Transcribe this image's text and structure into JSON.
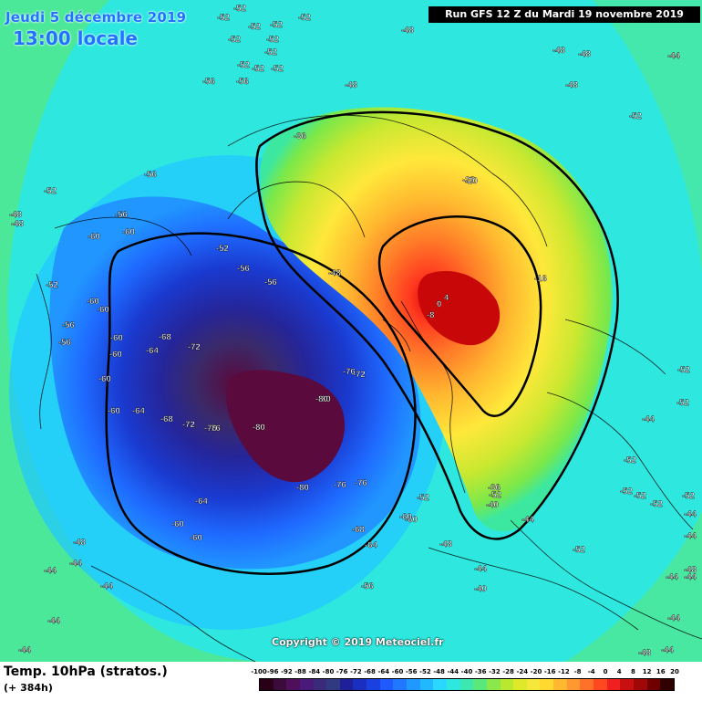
{
  "header": {
    "date_line": "Jeudi 5 décembre 2019",
    "time_line": "13:00 locale",
    "run_info": "Run GFS 12 Z du Mardi 19 novembre 2019"
  },
  "map": {
    "copyright": "Copyright © 2019 Meteociel.fr",
    "contour_labels": [
      "-52",
      "-52",
      "-52",
      "-52",
      "-52",
      "-52",
      "-52",
      "-48",
      "-56",
      "-56",
      "-52",
      "-48",
      "-52",
      "-52",
      "-52",
      "-52",
      "-52",
      "-48",
      "-56",
      "-56",
      "-48",
      "-60",
      "-60",
      "-56",
      "-52",
      "-56",
      "-60",
      "-60",
      "-56",
      "-60",
      "-60",
      "-60",
      "-60",
      "-64",
      "-68",
      "-72",
      "-76",
      "-72",
      "-80",
      "-80",
      "-64",
      "-68",
      "-72",
      "-76",
      "-80",
      "-76",
      "-80",
      "-76",
      "-76",
      "-68",
      "-64",
      "-60",
      "-60",
      "-64",
      "-60",
      "-56",
      "-52",
      "-60",
      "-56",
      "-48",
      "-48",
      "-44",
      "-44",
      "-44",
      "-44",
      "-44",
      "-36",
      "-28",
      "-20",
      "-16",
      "4",
      "0",
      "-8",
      "-36",
      "-40",
      "-44",
      "-48",
      "-44",
      "-40",
      "-52",
      "-52",
      "-52",
      "-52",
      "-52",
      "-52",
      "-52",
      "-52",
      "-52",
      "-44",
      "-44",
      "-48",
      "-44",
      "-44",
      "-44",
      "-48",
      "-52",
      "-48",
      "-48",
      "-48",
      "-44",
      "-44",
      "-44"
    ]
  },
  "footer": {
    "param_label": "Temp. 10hPa (stratos.)",
    "lead_time": "(+ 384h)"
  },
  "legend": {
    "title": "",
    "values": [
      "-100",
      "-96",
      "-92",
      "-88",
      "-84",
      "-80",
      "-76",
      "-72",
      "-68",
      "-64",
      "-60",
      "-56",
      "-52",
      "-48",
      "-44",
      "-40",
      "-36",
      "-32",
      "-28",
      "-24",
      "-20",
      "-16",
      "-12",
      "-8",
      "-4",
      "0",
      "4",
      "8",
      "12",
      "16",
      "20"
    ],
    "colors": [
      "#2a0018",
      "#3d0a3c",
      "#4f0f5a",
      "#4a1a7a",
      "#3a2a7a",
      "#2f3a80",
      "#1f1f9a",
      "#1a2fc0",
      "#1a40e0",
      "#1f5aff",
      "#1f78ff",
      "#1f98ff",
      "#22b8ff",
      "#2ad8ff",
      "#2ee8e0",
      "#3ce8b0",
      "#5ae87a",
      "#8ae84a",
      "#b8e830",
      "#e0e82a",
      "#f5e83a",
      "#ffd830",
      "#ffb830",
      "#ff9830",
      "#ff7028",
      "#ff4820",
      "#f02020",
      "#c81010",
      "#a00808",
      "#700000",
      "#300000"
    ]
  }
}
